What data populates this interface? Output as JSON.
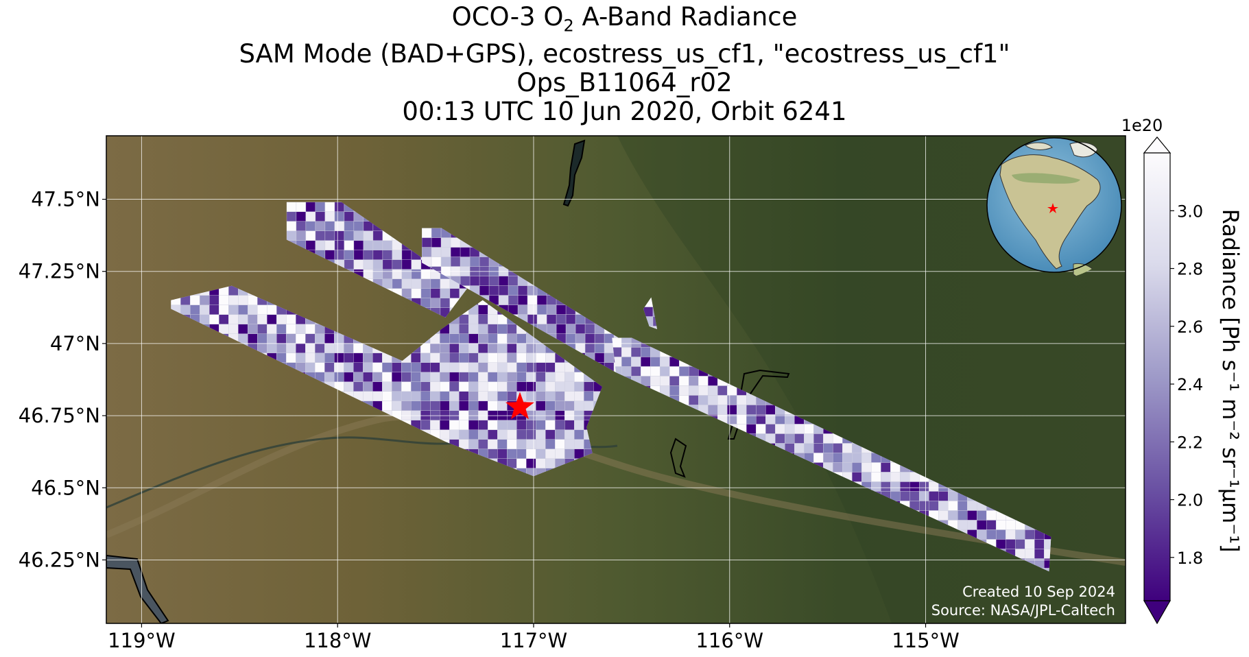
{
  "title": {
    "line1_prefix": "OCO-3 O",
    "line1_sub": "2",
    "line1_suffix": " A-Band Radiance",
    "line2": "SAM Mode (BAD+GPS), ecostress_us_cf1, \"ecostress_us_cf1\"",
    "line3": "Ops_B11064_r02",
    "line4": "00:13 UTC 10 Jun 2020, Orbit 6241"
  },
  "credits": {
    "created": "Created 10 Sep 2024",
    "source": "Source: NASA/JPL-Caltech"
  },
  "colorbar": {
    "label": "Radiance [Ph s⁻¹ m⁻² sr⁻¹μm⁻¹]",
    "multiplier": "1e20",
    "ticks": [
      "1.8",
      "2.0",
      "2.2",
      "2.4",
      "2.6",
      "2.8",
      "3.0"
    ],
    "tick_values": [
      1.8,
      2.0,
      2.2,
      2.4,
      2.6,
      2.8,
      3.0
    ],
    "range": [
      1.65,
      3.2
    ],
    "extend": "both",
    "colormap": "Purples_r",
    "color_low": "#3f007d",
    "color_high": "#fcfbfd"
  },
  "inset_globe": {
    "marker": "star",
    "marker_color": "#ff0000",
    "position": "top-right"
  },
  "chart_data": {
    "type": "heatmap",
    "title": "OCO-3 O2 A-Band Radiance",
    "xlabel": "",
    "ylabel": "",
    "xlim": [
      -119.18,
      -113.98
    ],
    "ylim": [
      46.03,
      47.72
    ],
    "x_tick_labels": [
      "119°W",
      "118°W",
      "117°W",
      "116°W",
      "115°W"
    ],
    "x_tick_values": [
      -119,
      -118,
      -117,
      -116,
      -115
    ],
    "y_tick_labels": [
      "47.5°N",
      "47.25°N",
      "47°N",
      "46.75°N",
      "46.5°N",
      "46.25°N"
    ],
    "y_tick_values": [
      47.5,
      47.25,
      47.0,
      46.75,
      46.5,
      46.25
    ],
    "grid": true,
    "target": {
      "lon": -117.07,
      "lat": 46.78,
      "marker": "star",
      "color": "#ff0000"
    },
    "swaths": [
      {
        "corners": [
          [
            -118.26,
            47.49
          ],
          [
            -117.98,
            47.49
          ],
          [
            -117.34,
            47.19
          ],
          [
            -117.45,
            47.09
          ],
          [
            -118.26,
            47.36
          ]
        ]
      },
      {
        "corners": [
          [
            -117.57,
            47.4
          ],
          [
            -117.47,
            47.4
          ],
          [
            -116.52,
            47.0
          ],
          [
            -116.58,
            46.9
          ],
          [
            -117.57,
            47.28
          ]
        ]
      },
      {
        "corners": [
          [
            -118.85,
            47.15
          ],
          [
            -118.54,
            47.2
          ],
          [
            -117.67,
            46.94
          ],
          [
            -117.47,
            47.05
          ],
          [
            -117.26,
            47.15
          ],
          [
            -116.65,
            46.85
          ],
          [
            -116.73,
            46.71
          ],
          [
            -116.7,
            46.62
          ],
          [
            -117.0,
            46.54
          ],
          [
            -117.45,
            46.66
          ],
          [
            -118.85,
            47.12
          ]
        ]
      },
      {
        "corners": [
          [
            -116.44,
            47.12
          ],
          [
            -116.4,
            47.16
          ],
          [
            -116.37,
            47.05
          ],
          [
            -116.41,
            47.06
          ]
        ]
      },
      {
        "corners": [
          [
            -116.6,
            47.02
          ],
          [
            -116.5,
            47.02
          ],
          [
            -114.36,
            46.33
          ],
          [
            -114.37,
            46.21
          ],
          [
            -116.58,
            46.9
          ]
        ]
      }
    ]
  }
}
